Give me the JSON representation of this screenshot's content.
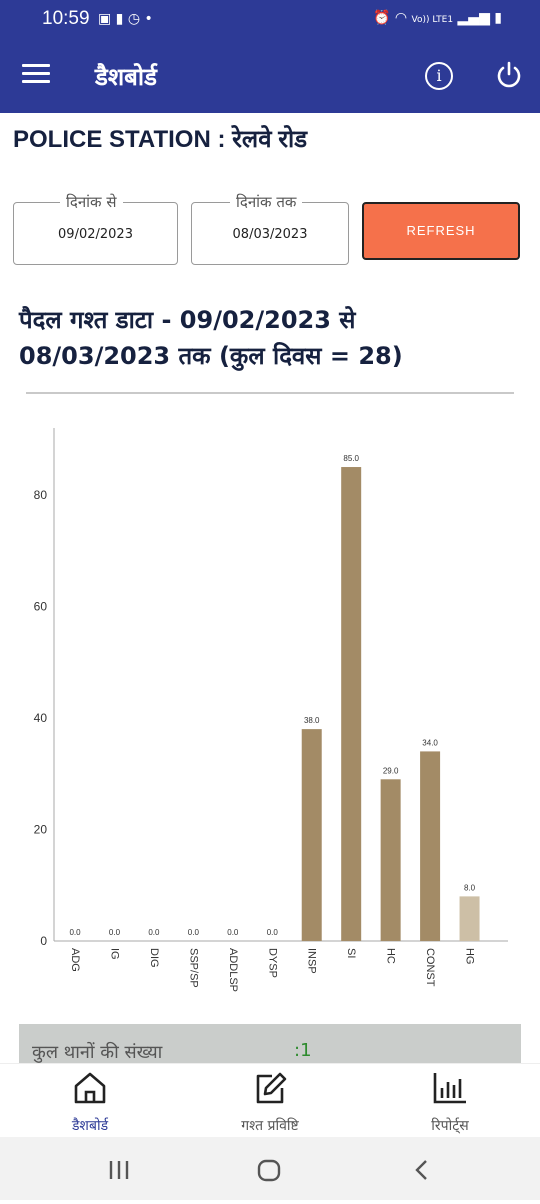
{
  "status_bar": {
    "time": "10:59",
    "network": "Vo)) LTE1"
  },
  "app_bar": {
    "title": "डैशबोर्ड"
  },
  "station": "POLICE STATION : रेलवे रोड",
  "filters": {
    "from_label": "दिनांक से",
    "from_value": "09/02/2023",
    "to_label": "दिनांक तक",
    "to_value": "08/03/2023",
    "refresh_label": "REFRESH"
  },
  "heading": "पैदल गश्त डाटा - 09/02/2023 से 08/03/2023 तक (कुल दिवस = 28)",
  "chart_data": {
    "type": "bar",
    "categories": [
      "ADG",
      "IG",
      "DIG",
      "SSP/SP",
      "ADDLSP",
      "DYSP",
      "INSP",
      "SI",
      "HC",
      "CONST",
      "HG"
    ],
    "values": [
      0.0,
      0.0,
      0.0,
      0.0,
      0.0,
      0.0,
      38.0,
      85.0,
      29.0,
      34.0,
      8.0
    ],
    "value_labels": [
      "0.0",
      "0.0",
      "0.0",
      "0.0",
      "0.0",
      "0.0",
      "38.0",
      "85.0",
      "29.0",
      "34.0",
      "8.0"
    ],
    "yticks": [
      "0",
      "20",
      "40",
      "60",
      "80"
    ],
    "ylim": [
      0,
      92
    ],
    "colors": [
      "#a38b66",
      "#a38b66",
      "#a38b66",
      "#a38b66",
      "#a38b66",
      "#a38b66",
      "#a38b66",
      "#a38b66",
      "#a38b66",
      "#a38b66",
      "#cdbfa6"
    ],
    "grid": false
  },
  "summary": {
    "label": "कुल थानों की संख्या",
    "value": ":1"
  },
  "bottom_nav": [
    {
      "label": "डैशबोर्ड",
      "icon": "home-icon",
      "active": true
    },
    {
      "label": "गश्त प्रविष्टि",
      "icon": "edit-icon",
      "active": false
    },
    {
      "label": "रिपोर्ट्स",
      "icon": "bar-chart-icon",
      "active": false
    }
  ]
}
